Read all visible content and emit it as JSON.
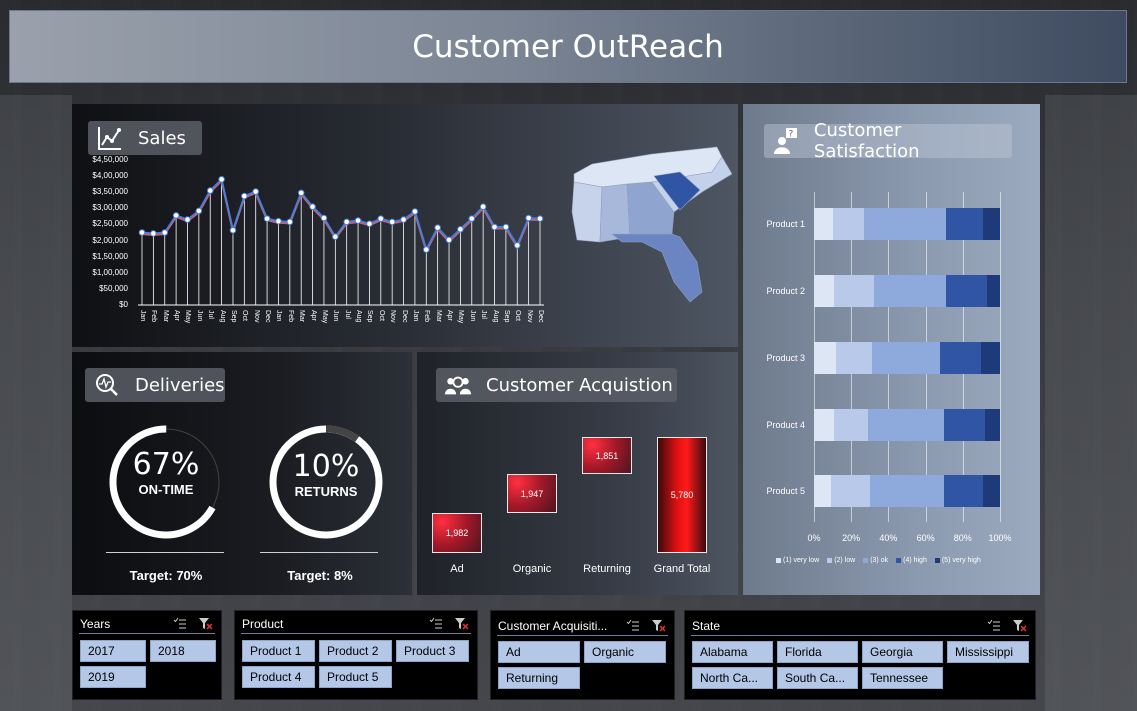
{
  "title": "Customer OutReach",
  "sales": {
    "header": "Sales",
    "y_ticks": [
      "$4,50,000",
      "$4,00,000",
      "$3,50,000",
      "$3,00,000",
      "$2,50,000",
      "$2,00,000",
      "$1,50,000",
      "$1,00,000",
      "$50,000",
      "$0"
    ],
    "months": [
      "Jan",
      "Feb",
      "Mar",
      "Apr",
      "May",
      "Jun",
      "Jul",
      "Aug",
      "Sep",
      "Oct",
      "Nov",
      "Dec",
      "Jan",
      "Feb",
      "Mar",
      "Apr",
      "May",
      "Jun",
      "Jul",
      "Aug",
      "Sep",
      "Oct",
      "Nov",
      "Dec",
      "Jan",
      "Feb",
      "Mar",
      "Apr",
      "May",
      "Jun",
      "Jul",
      "Aug",
      "Sep",
      "Oct",
      "Nov",
      "Dec"
    ]
  },
  "chart_data": {
    "type": "line",
    "title": "Sales",
    "x": [
      "Jan",
      "Feb",
      "Mar",
      "Apr",
      "May",
      "Jun",
      "Jul",
      "Aug",
      "Sep",
      "Oct",
      "Nov",
      "Dec",
      "Jan",
      "Feb",
      "Mar",
      "Apr",
      "May",
      "Jun",
      "Jul",
      "Aug",
      "Sep",
      "Oct",
      "Nov",
      "Dec",
      "Jan",
      "Feb",
      "Mar",
      "Apr",
      "May",
      "Jun",
      "Jul",
      "Aug",
      "Sep",
      "Oct",
      "Nov",
      "Dec"
    ],
    "series": [
      {
        "values": [
          225000,
          222000,
          225000,
          278000,
          265000,
          292000,
          355000,
          390000,
          232000,
          338000,
          352000,
          268000,
          260000,
          258000,
          348000,
          305000,
          270000,
          212000,
          258000,
          262000,
          252000,
          268000,
          258000,
          265000,
          290000,
          172000,
          240000,
          202000,
          235000,
          268000,
          305000,
          242000,
          242000,
          185000,
          270000,
          268000
        ]
      }
    ],
    "ylim": [
      0,
      450000
    ],
    "colors": [
      "#4a7ed8",
      "#e05a6a"
    ]
  },
  "deliveries": {
    "header": "Deliveries",
    "ontime_value": "67%",
    "ontime_label": "ON-TIME",
    "ontime_fraction": 0.67,
    "ontime_target": "Target: 70%",
    "returns_value": "10%",
    "returns_label": "RETURNS",
    "returns_fraction": 0.1,
    "returns_target": "Target: 8%"
  },
  "acquisition": {
    "header": "Customer Acquistion",
    "categories": [
      "Ad",
      "Organic",
      "Returning",
      "Grand Total"
    ],
    "values": [
      1982,
      1947,
      1851,
      5780
    ],
    "labels": [
      "1,982",
      "1,947",
      "1,851",
      "5,780"
    ]
  },
  "satisfaction": {
    "header": "Customer Satisfaction",
    "products": [
      "Product 1",
      "Product 2",
      "Product 3",
      "Product 4",
      "Product 5"
    ],
    "segments": [
      [
        10,
        17,
        44,
        20,
        9
      ],
      [
        11,
        21,
        39,
        22,
        7
      ],
      [
        12,
        19,
        37,
        22,
        10
      ],
      [
        11,
        18,
        41,
        22,
        8
      ],
      [
        9,
        21,
        40,
        21,
        9
      ]
    ],
    "x_ticks": [
      "0%",
      "20%",
      "40%",
      "60%",
      "80%",
      "100%"
    ],
    "legend": [
      "(1) very low",
      "(2) low",
      "(3) ok",
      "(4) high",
      "(5) very high"
    ],
    "colors": [
      "#dde6f5",
      "#b8c9ea",
      "#8eaadd",
      "#2f55a4",
      "#1f3a78"
    ]
  },
  "slicers": {
    "years": {
      "title": "Years",
      "items": [
        "2017",
        "2018",
        "2019"
      ]
    },
    "product": {
      "title": "Product",
      "items": [
        "Product 1",
        "Product 2",
        "Product 3",
        "Product 4",
        "Product 5"
      ]
    },
    "acq": {
      "title": "Customer Acquisiti...",
      "items": [
        "Ad",
        "Organic",
        "Returning"
      ]
    },
    "state": {
      "title": "State",
      "items": [
        "Alabama",
        "Florida",
        "Georgia",
        "Mississippi",
        "North Ca...",
        "South Ca...",
        "Tennessee"
      ]
    }
  },
  "icons": {
    "sales": "line-chart-icon",
    "deliveries": "search-pulse-icon",
    "acquisition": "users-search-icon",
    "satisfaction": "user-question-icon",
    "multiselect": "multiselect-icon",
    "clear_filter": "clear-filter-icon"
  }
}
